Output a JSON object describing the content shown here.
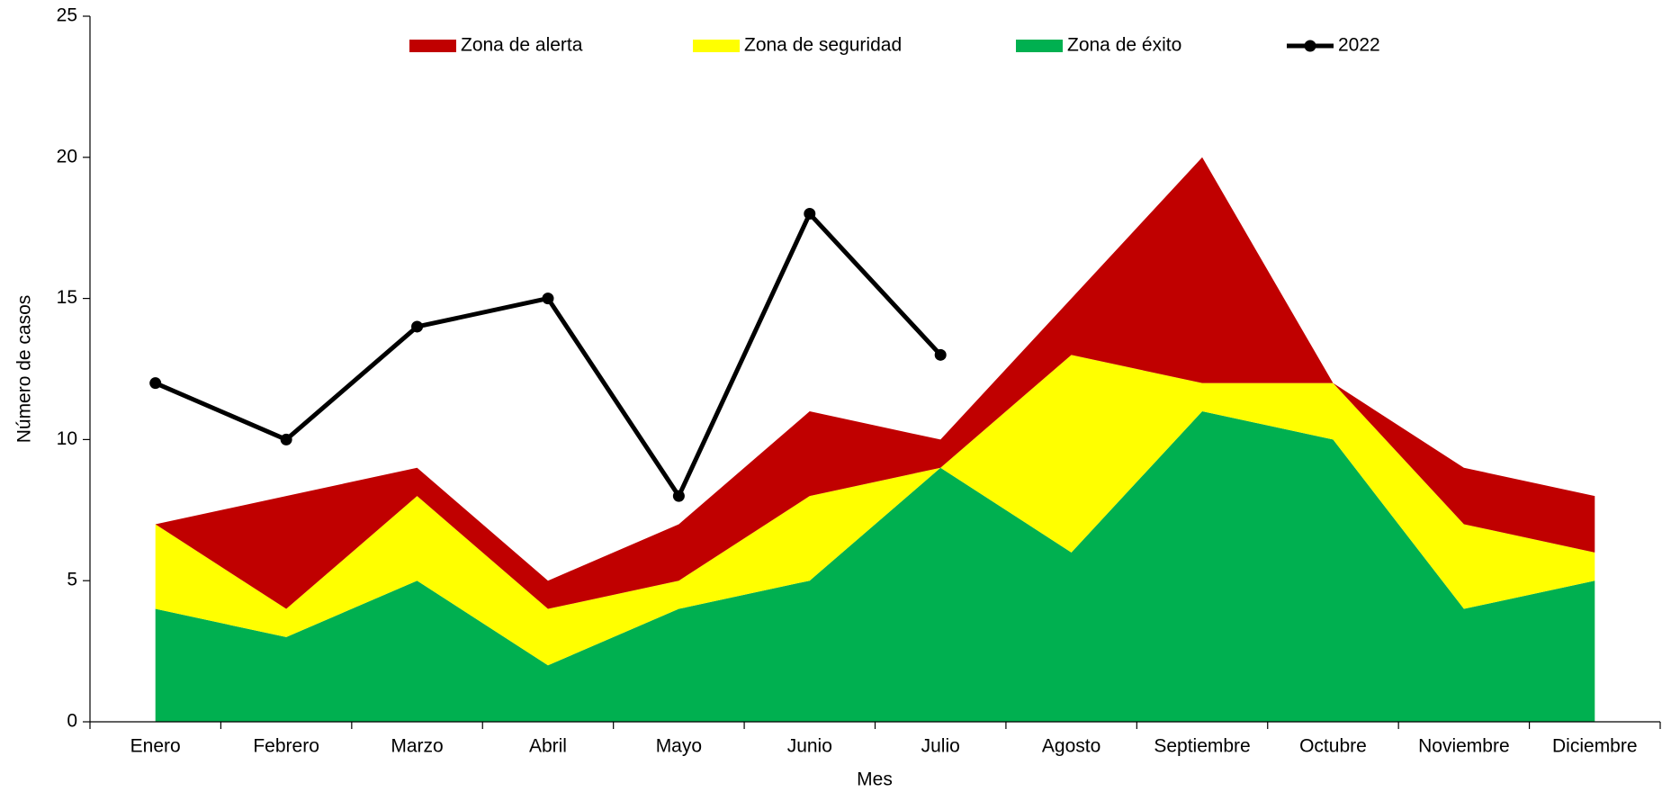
{
  "chart_data": {
    "type": "stacked-area-line",
    "categories": [
      "Enero",
      "Febrero",
      "Marzo",
      "Abril",
      "Mayo",
      "Junio",
      "Julio",
      "Agosto",
      "Septiembre",
      "Octubre",
      "Noviembre",
      "Diciembre"
    ],
    "series": [
      {
        "name": "Zona de éxito",
        "color": "#00b050",
        "kind": "area",
        "values": [
          4,
          3,
          5,
          2,
          4,
          5,
          9,
          6,
          11,
          10,
          4,
          5
        ]
      },
      {
        "name": "Zona de seguridad",
        "color": "#ffff00",
        "kind": "area",
        "values": [
          3,
          1,
          3,
          2,
          1,
          3,
          0,
          7,
          1,
          2,
          3,
          1
        ]
      },
      {
        "name": "Zona de alerta",
        "color": "#c00000",
        "kind": "area",
        "values": [
          0,
          4,
          1,
          1,
          2,
          3,
          1,
          2,
          8,
          0,
          2,
          2
        ]
      },
      {
        "name": "2022",
        "color": "#000000",
        "kind": "line",
        "values": [
          12,
          10,
          14,
          15,
          8,
          18,
          13,
          null,
          null,
          null,
          null,
          null
        ]
      }
    ],
    "legend_order": [
      2,
      1,
      0,
      3
    ],
    "xlabel": "Mes",
    "ylabel": "Número de casos",
    "ylim": [
      0,
      25
    ],
    "yticks": [
      0,
      5,
      10,
      15,
      20,
      25
    ]
  }
}
